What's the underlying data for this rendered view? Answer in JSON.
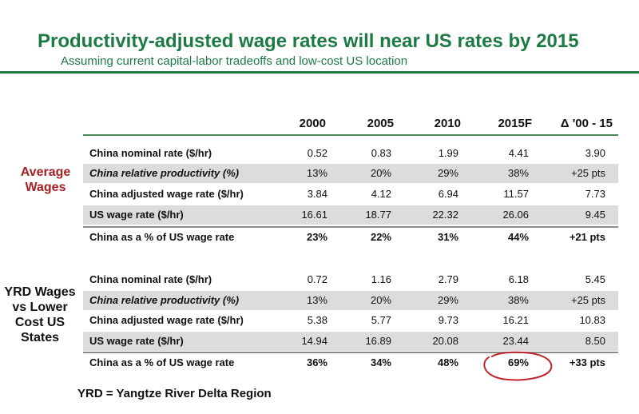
{
  "title": "Productivity-adjusted wage rates will near US rates by 2015",
  "subtitle": "Assuming current capital-labor tradeoffs and low-cost US location",
  "columns": [
    "2000",
    "2005",
    "2010",
    "2015F",
    "Δ '00 - 15"
  ],
  "section1": {
    "label_line1": "Average",
    "label_line2": "Wages",
    "rows": [
      {
        "label": "China nominal rate ($/hr)",
        "values": [
          "0.52",
          "0.83",
          "1.99",
          "4.41",
          "3.90"
        ]
      },
      {
        "label": "China relative productivity (%)",
        "values": [
          "13%",
          "20%",
          "29%",
          "38%",
          "+25 pts"
        ]
      },
      {
        "label": "China adjusted wage rate ($/hr)",
        "values": [
          "3.84",
          "4.12",
          "6.94",
          "11.57",
          "7.73"
        ]
      },
      {
        "label": "US wage rate ($/hr)",
        "values": [
          "16.61",
          "18.77",
          "22.32",
          "26.06",
          "9.45"
        ]
      },
      {
        "label": "China as a % of US wage rate",
        "values": [
          "23%",
          "22%",
          "31%",
          "44%",
          "+21 pts"
        ]
      }
    ]
  },
  "section2": {
    "label_line1": "YRD Wages",
    "label_line2": "vs Lower",
    "label_line3": "Cost US",
    "label_line4": "States",
    "rows": [
      {
        "label": "China nominal rate ($/hr)",
        "values": [
          "0.72",
          "1.16",
          "2.79",
          "6.18",
          "5.45"
        ]
      },
      {
        "label": "China relative productivity (%)",
        "values": [
          "13%",
          "20%",
          "29%",
          "38%",
          "+25  pts"
        ]
      },
      {
        "label": "China adjusted wage rate ($/hr)",
        "values": [
          "5.38",
          "5.77",
          "9.73",
          "16.21",
          "10.83"
        ]
      },
      {
        "label": "US wage rate ($/hr)",
        "values": [
          "14.94",
          "16.89",
          "20.08",
          "23.44",
          "8.50"
        ]
      },
      {
        "label": "China as a % of US wage rate",
        "values": [
          "36%",
          "34%",
          "48%",
          "69%",
          "+33  pts"
        ]
      }
    ]
  },
  "footnote": "YRD = Yangtze River Delta Region",
  "colors": {
    "brand_green": "#1d7a45",
    "annotation_red": "#a31f24",
    "row_shade": "#dcdcdc"
  }
}
